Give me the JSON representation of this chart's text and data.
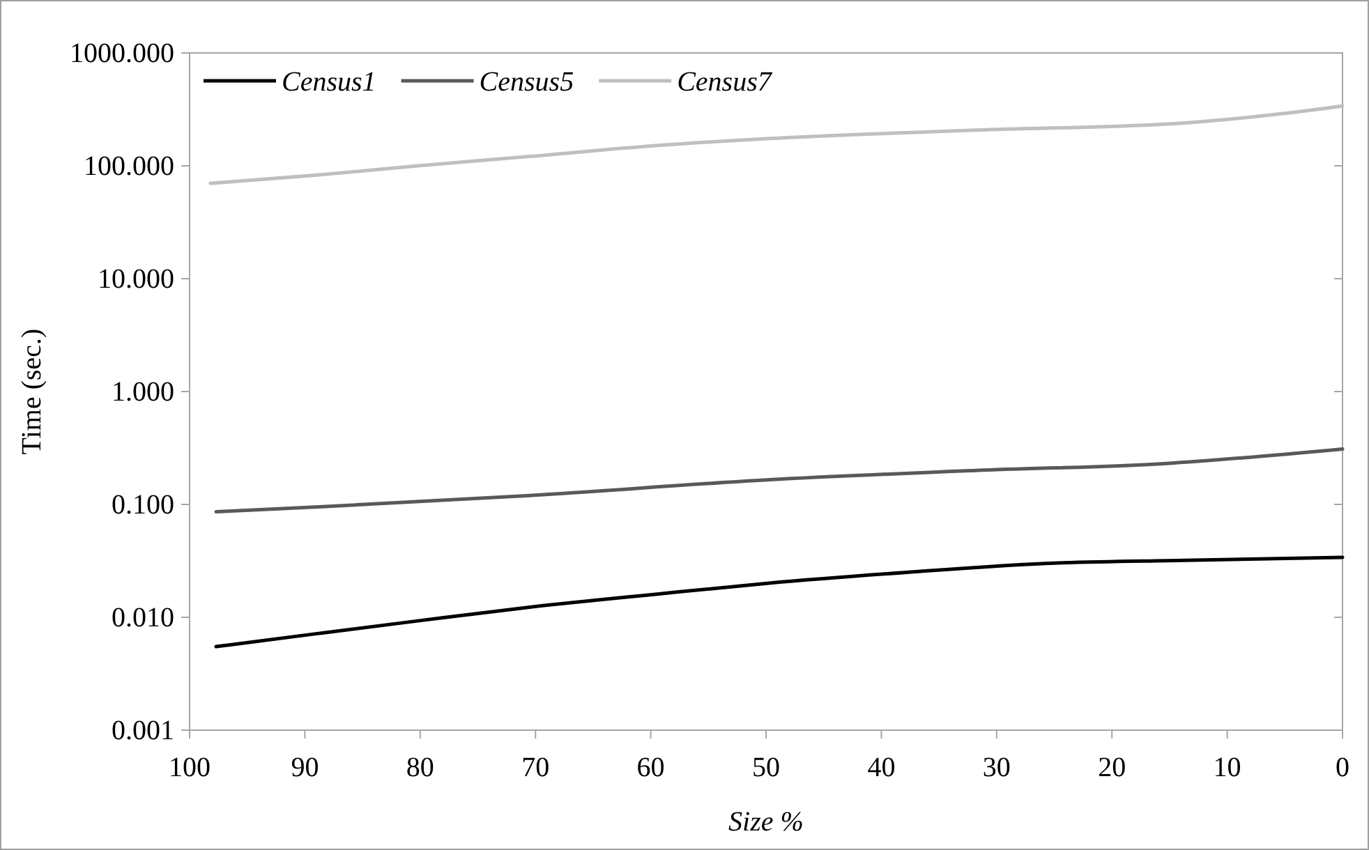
{
  "chart_data": {
    "type": "line",
    "xlabel": "Size %",
    "ylabel": "Time (sec.)",
    "log": "y",
    "grid": false,
    "legend": "top left",
    "marker": "none",
    "line_style": "solid",
    "xlim": [
      100,
      0
    ],
    "xticks": [
      100,
      90,
      80,
      70,
      60,
      50,
      40,
      30,
      20,
      10,
      0
    ],
    "ylim": [
      0.001,
      1000
    ],
    "yticks": [
      {
        "value": 0.001,
        "label": "0.001"
      },
      {
        "value": 0.01,
        "label": "0.010"
      },
      {
        "value": 0.1,
        "label": "0.100"
      },
      {
        "value": 1,
        "label": "1.000"
      },
      {
        "value": 10,
        "label": "10.000"
      },
      {
        "value": 100,
        "label": "100.000"
      },
      {
        "value": 1000,
        "label": "1000.000"
      }
    ],
    "series": [
      {
        "name": "Census1",
        "color": "#000000",
        "x": [
          97.7,
          88.8,
          80.2,
          70.5,
          59.6,
          49.9,
          37.8,
          25.8,
          13.7,
          0
        ],
        "values": [
          0.0055,
          0.0072,
          0.0093,
          0.0123,
          0.016,
          0.02,
          0.025,
          0.03,
          0.032,
          0.034
        ]
      },
      {
        "name": "Census5",
        "color": "#595959",
        "x": [
          97.7,
          88.8,
          70.5,
          49.9,
          31.8,
          15.5,
          0
        ],
        "values": [
          0.086,
          0.095,
          0.12,
          0.165,
          0.2,
          0.23,
          0.31
        ]
      },
      {
        "name": "Census7",
        "color": "#bfbfbf",
        "x": [
          98.2,
          88.8,
          80.2,
          70.5,
          59.6,
          49.9,
          31.8,
          13.7,
          5.2,
          0
        ],
        "values": [
          70,
          83,
          100,
          121,
          151,
          174,
          207,
          240,
          290,
          340
        ]
      }
    ]
  }
}
